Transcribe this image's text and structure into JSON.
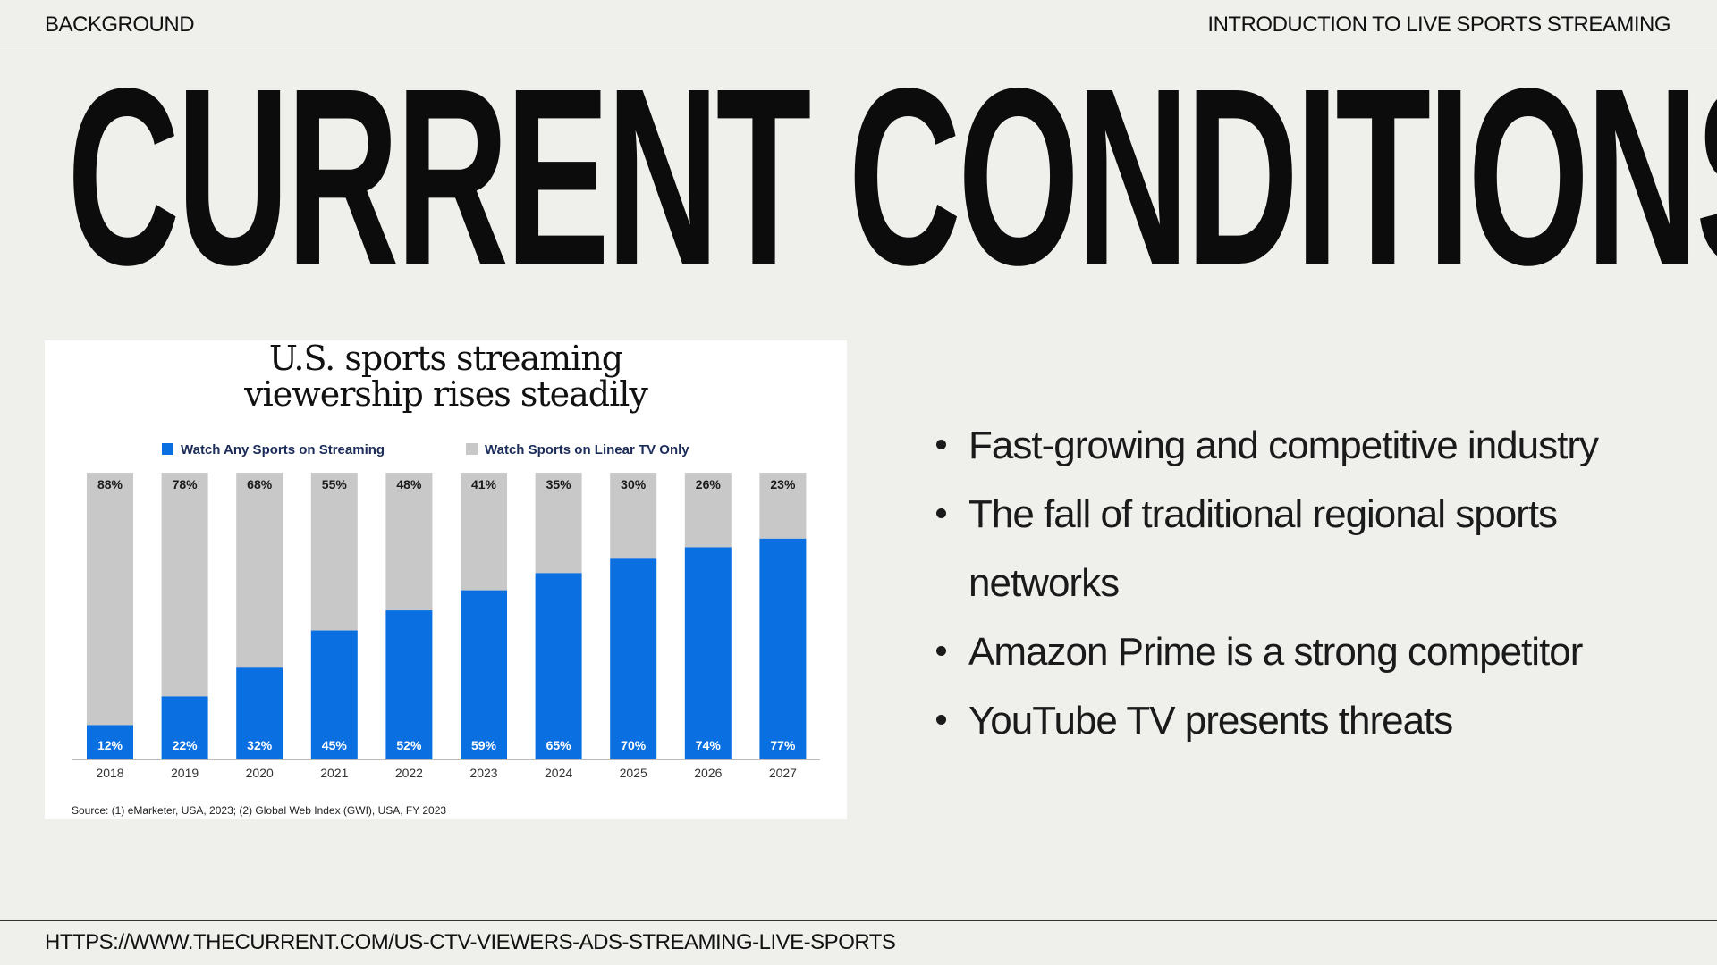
{
  "header": {
    "left": "BACKGROUND",
    "right": "INTRODUCTION TO LIVE SPORTS STREAMING"
  },
  "slide_title": "CURRENT CONDITIONS",
  "chart": {
    "title_line1": "U.S. sports streaming",
    "title_line2": "viewership rises steadily",
    "source": "Source: (1) eMarketer, USA, 2023; (2) Global Web Index (GWI), USA, FY 2023"
  },
  "chart_data": {
    "type": "bar",
    "stacked": true,
    "title": "U.S. sports streaming viewership rises steadily",
    "categories": [
      "2018",
      "2019",
      "2020",
      "2021",
      "2022",
      "2023",
      "2024",
      "2025",
      "2026",
      "2027"
    ],
    "series": [
      {
        "name": "Watch Any Sports on Streaming",
        "values": [
          12,
          22,
          32,
          45,
          52,
          59,
          65,
          70,
          74,
          77
        ],
        "color": "#0a6fe0"
      },
      {
        "name": "Watch Sports on Linear TV Only",
        "values": [
          88,
          78,
          68,
          55,
          48,
          41,
          35,
          30,
          26,
          23
        ],
        "color": "#c8c8c8"
      }
    ],
    "value_suffix": "%",
    "ylim": [
      0,
      100
    ],
    "legend": "top",
    "grid": false
  },
  "bullets": [
    "Fast-growing and competitive industry",
    "The fall of traditional regional sports networks",
    "Amazon Prime is a strong competitor",
    "YouTube TV presents threats"
  ],
  "footer": {
    "url": "HTTPS://WWW.THECURRENT.COM/US-CTV-VIEWERS-ADS-STREAMING-LIVE-SPORTS"
  }
}
